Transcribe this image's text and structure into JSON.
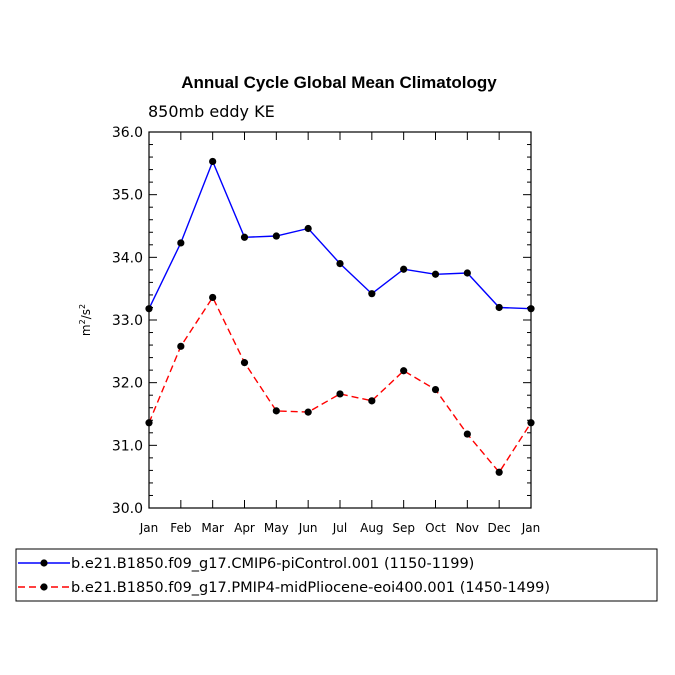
{
  "chart_data": {
    "type": "line",
    "title": "Annual Cycle Global Mean Climatology",
    "subtitle": "850mb eddy KE",
    "ylabel_base": "m",
    "ylabel_exp1": "2",
    "ylabel_mid": "/s",
    "ylabel_exp2": "2",
    "ylim": [
      30.0,
      36.0
    ],
    "yticks": [
      "30.0",
      "31.0",
      "32.0",
      "33.0",
      "34.0",
      "35.0",
      "36.0"
    ],
    "categories": [
      "Jan",
      "Feb",
      "Mar",
      "Apr",
      "May",
      "Jun",
      "Jul",
      "Aug",
      "Sep",
      "Oct",
      "Nov",
      "Dec",
      "Jan"
    ],
    "legend_position": "bottom",
    "series": [
      {
        "name": "b.e21.B1850.f09_g17.CMIP6-piControl.001 (1150-1199)",
        "color": "#0000ff",
        "dash": "solid",
        "values": [
          33.18,
          34.23,
          35.53,
          34.32,
          34.34,
          34.46,
          33.9,
          33.42,
          33.81,
          33.73,
          33.75,
          33.2,
          33.18
        ]
      },
      {
        "name": "b.e21.B1850.f09_g17.PMIP4-midPliocene-eoi400.001 (1450-1499)",
        "color": "#ff0000",
        "dash": "dashed",
        "values": [
          31.36,
          32.58,
          33.36,
          32.32,
          31.55,
          31.53,
          31.82,
          31.71,
          32.19,
          31.89,
          31.18,
          30.57,
          31.36
        ]
      }
    ]
  }
}
